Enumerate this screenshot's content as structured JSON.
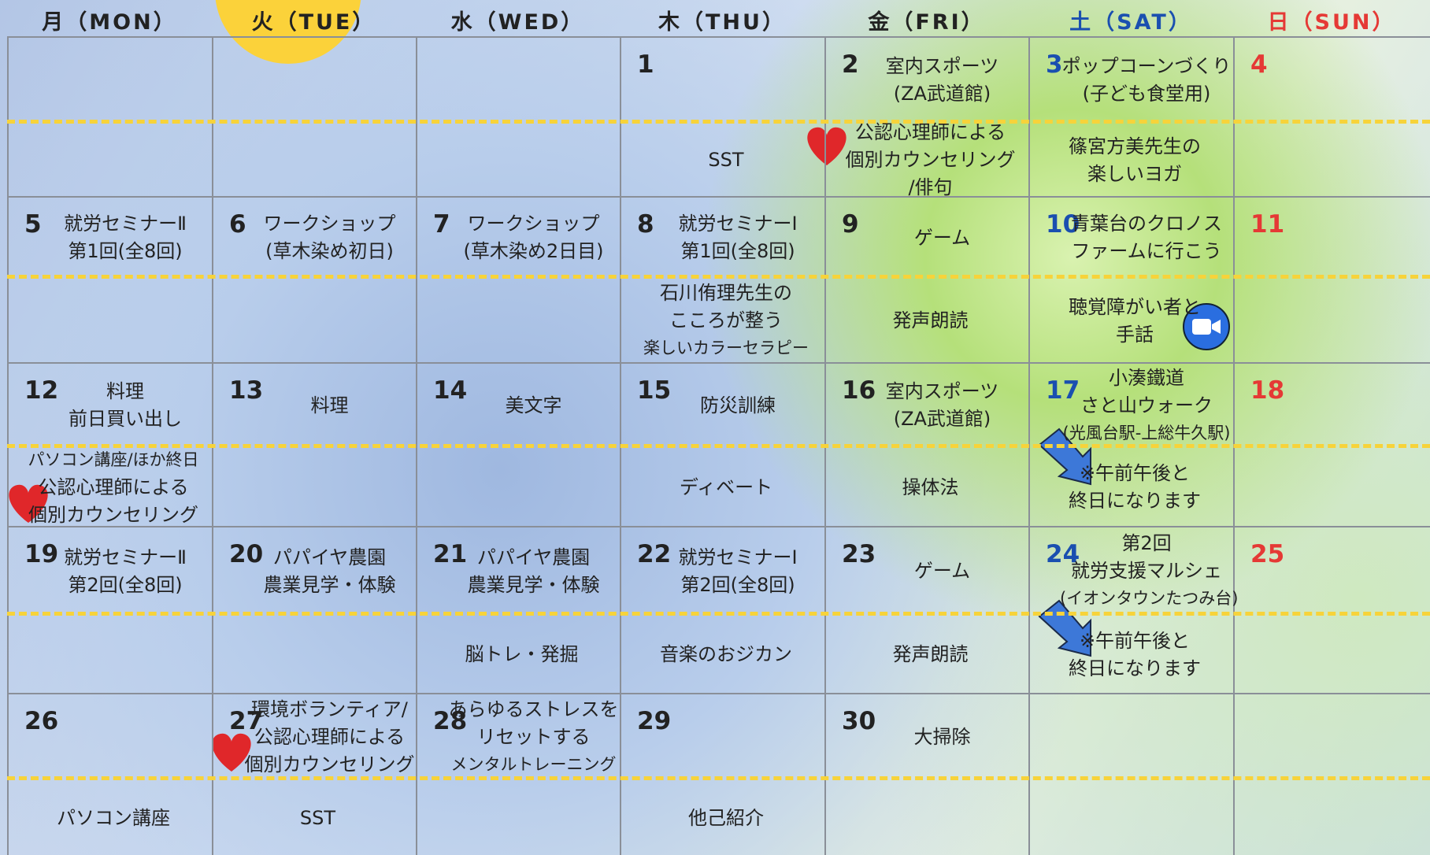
{
  "weekdays": [
    "月（MON）",
    "火（TUE）",
    "水（WED）",
    "木（THU）",
    "金（FRI）",
    "土（SAT）",
    "日（SUN）"
  ],
  "weeks": [
    {
      "cells": [
        {},
        {},
        {},
        {
          "day": 1,
          "pm": [
            "SST"
          ]
        },
        {
          "day": 2,
          "am": [
            "室内スポーツ",
            "(ZA武道館)"
          ],
          "pm": [
            "公認心理師による",
            "個別カウンセリング",
            "/俳句"
          ]
        },
        {
          "day": 3,
          "am": [
            "ポップコーンづくり",
            "(子ども食堂用)"
          ],
          "pm": [
            "篠宮方美先生の",
            "楽しいヨガ"
          ]
        },
        {
          "day": 4
        }
      ]
    },
    {
      "cells": [
        {
          "day": 5,
          "am": [
            "就労セミナーⅡ",
            "第1回(全8回)"
          ]
        },
        {
          "day": 6,
          "am": [
            "ワークショップ",
            "(草木染め初日)"
          ]
        },
        {
          "day": 7,
          "am": [
            "ワークショップ",
            "(草木染め2日目)"
          ]
        },
        {
          "day": 8,
          "am": [
            "就労セミナーⅠ",
            "第1回(全8回)"
          ],
          "pm": [
            "石川侑理先生の",
            "こころが整う",
            "楽しいカラーセラピー"
          ]
        },
        {
          "day": 9,
          "am": [
            "ゲーム"
          ],
          "pm": [
            "発声朗読"
          ]
        },
        {
          "day": 10,
          "am": [
            "青葉台のクロノス",
            "ファームに行こう"
          ],
          "pm": [
            "聴覚障がい者と",
            "手話"
          ]
        },
        {
          "day": 11
        }
      ]
    },
    {
      "cells": [
        {
          "day": 12,
          "am": [
            "料理",
            "前日買い出し"
          ],
          "pm": [
            "パソコン講座/ほか終日",
            "公認心理師による",
            "個別カウンセリング"
          ]
        },
        {
          "day": 13,
          "am": [
            "料理"
          ]
        },
        {
          "day": 14,
          "am": [
            "美文字"
          ]
        },
        {
          "day": 15,
          "am": [
            "防災訓練"
          ],
          "pm": [
            "ディベート"
          ]
        },
        {
          "day": 16,
          "am": [
            "室内スポーツ",
            "(ZA武道館)"
          ],
          "pm": [
            "操体法"
          ]
        },
        {
          "day": 17,
          "am": [
            "小湊鐵道",
            "さと山ウォーク",
            "(光風台駅-上総牛久駅)"
          ],
          "pm": [
            "※午前午後と",
            "終日になります"
          ]
        },
        {
          "day": 18
        }
      ]
    },
    {
      "cells": [
        {
          "day": 19,
          "am": [
            "就労セミナーⅡ",
            "第2回(全8回)"
          ]
        },
        {
          "day": 20,
          "am": [
            "パパイヤ農園",
            "農業見学・体験"
          ]
        },
        {
          "day": 21,
          "am": [
            "パパイヤ農園",
            "農業見学・体験"
          ],
          "pm": [
            "脳トレ・発掘"
          ]
        },
        {
          "day": 22,
          "am": [
            "就労セミナーⅠ",
            "第2回(全8回)"
          ],
          "pm": [
            "音楽のおジカン"
          ]
        },
        {
          "day": 23,
          "am": [
            "ゲーム"
          ],
          "pm": [
            "発声朗読"
          ]
        },
        {
          "day": 24,
          "am": [
            "第2回",
            "就労支援マルシェ",
            "(イオンタウンたつみ台)"
          ],
          "pm": [
            "※午前午後と",
            "終日になります"
          ]
        },
        {
          "day": 25
        }
      ]
    },
    {
      "cells": [
        {
          "day": 26,
          "pm": [
            "パソコン講座"
          ]
        },
        {
          "day": 27,
          "am": [
            "環境ボランティア/",
            "公認心理師による",
            "個別カウンセリング"
          ],
          "pm": [
            "SST"
          ]
        },
        {
          "day": 28,
          "am": [
            "あらゆるストレスを",
            "リセットする",
            "メンタルトレーニング"
          ]
        },
        {
          "day": 29,
          "pm": [
            "他己紹介"
          ]
        },
        {
          "day": 30,
          "am": [
            "大掃除"
          ]
        },
        {},
        {}
      ]
    }
  ]
}
